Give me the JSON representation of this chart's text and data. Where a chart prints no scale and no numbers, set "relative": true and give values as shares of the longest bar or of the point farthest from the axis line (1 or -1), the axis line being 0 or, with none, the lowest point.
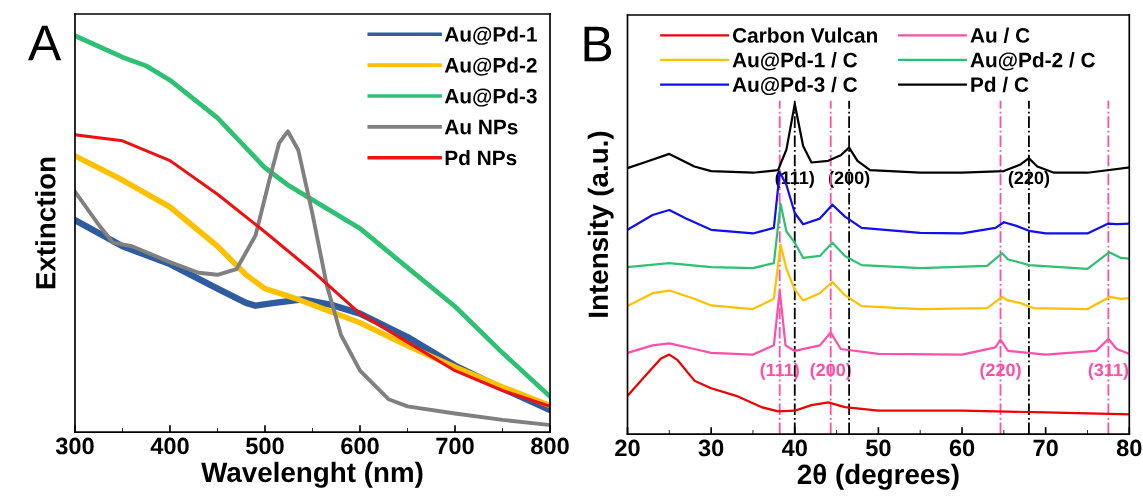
{
  "chart_data": [
    {
      "type": "line",
      "title": "A",
      "xlabel": "Wavelenght (nm)",
      "ylabel": "Extinction",
      "relative": true,
      "xlim": [
        300,
        800
      ],
      "xticks": [
        300,
        400,
        500,
        600,
        700,
        800
      ],
      "tick_labels": "x",
      "legend": "top right",
      "series": [
        {
          "name": "Au@Pd-1",
          "color": "#2e5c9e",
          "x": [
            300,
            350,
            400,
            450,
            480,
            490,
            510,
            540,
            570,
            600,
            650,
            700,
            750,
            800
          ],
          "values": [
            0.535,
            0.469,
            0.424,
            0.362,
            0.326,
            0.319,
            0.326,
            0.335,
            0.321,
            0.299,
            0.24,
            0.168,
            0.11,
            0.056
          ]
        },
        {
          "name": "Au@Pd-2",
          "color": "#ffc000",
          "x": [
            300,
            350,
            400,
            450,
            480,
            500,
            530,
            560,
            600,
            650,
            700,
            750,
            800
          ],
          "values": [
            0.697,
            0.636,
            0.568,
            0.469,
            0.397,
            0.362,
            0.339,
            0.312,
            0.276,
            0.218,
            0.164,
            0.114,
            0.067
          ]
        },
        {
          "name": "Au@Pd-3",
          "color": "#2ec073",
          "x": [
            300,
            350,
            375,
            400,
            450,
            500,
            525,
            550,
            600,
            650,
            700,
            750,
            800
          ],
          "values": [
            1.0,
            0.946,
            0.924,
            0.888,
            0.793,
            0.667,
            0.622,
            0.586,
            0.514,
            0.415,
            0.317,
            0.2,
            0.09
          ]
        },
        {
          "name": "Au NPs",
          "color": "#808080",
          "x": [
            300,
            325,
            340,
            360,
            400,
            430,
            450,
            470,
            490,
            505,
            515,
            524,
            535,
            550,
            565,
            580,
            600,
            630,
            650,
            700,
            750,
            800
          ],
          "values": [
            0.607,
            0.523,
            0.478,
            0.469,
            0.429,
            0.402,
            0.397,
            0.411,
            0.496,
            0.64,
            0.73,
            0.759,
            0.712,
            0.55,
            0.371,
            0.245,
            0.155,
            0.083,
            0.065,
            0.047,
            0.031,
            0.018
          ]
        },
        {
          "name": "Pd NPs",
          "color": "#ee1111",
          "x": [
            300,
            350,
            400,
            450,
            500,
            550,
            600,
            650,
            700,
            750,
            800
          ],
          "values": [
            0.75,
            0.735,
            0.685,
            0.6,
            0.505,
            0.406,
            0.299,
            0.227,
            0.155,
            0.105,
            0.065
          ]
        }
      ]
    },
    {
      "type": "line",
      "title": "B",
      "xlabel": "2θ (degrees)",
      "ylabel": "Intensity (a.u.)",
      "relative": true,
      "xlim": [
        20,
        80
      ],
      "xticks": [
        20,
        30,
        40,
        50,
        60,
        70,
        80
      ],
      "tick_labels": "x",
      "legend": "top",
      "series": [
        {
          "name": "Carbon Vulcan",
          "color": "#ee0000",
          "x": [
            20,
            22,
            24,
            25,
            26,
            28,
            30,
            33,
            36,
            38,
            40,
            42,
            44,
            46,
            50,
            60,
            70,
            80
          ],
          "values": [
            0.116,
            0.173,
            0.229,
            0.241,
            0.224,
            0.162,
            0.139,
            0.116,
            0.082,
            0.069,
            0.071,
            0.088,
            0.096,
            0.082,
            0.071,
            0.071,
            0.066,
            0.06
          ]
        },
        {
          "name": "Au / C",
          "color": "#ff4fa7",
          "x": [
            20,
            23,
            25,
            28,
            30,
            35,
            37.5,
            38.2,
            38.9,
            40,
            43,
            44.3,
            45.5,
            50,
            60,
            64,
            64.6,
            65.5,
            70,
            76,
            77.5,
            78.5,
            80
          ],
          "values": [
            0.246,
            0.269,
            0.275,
            0.258,
            0.246,
            0.241,
            0.269,
            0.435,
            0.269,
            0.252,
            0.269,
            0.308,
            0.258,
            0.243,
            0.241,
            0.263,
            0.286,
            0.252,
            0.241,
            0.252,
            0.288,
            0.258,
            0.243
          ]
        },
        {
          "name": "Au@Pd-1 / C",
          "color": "#ffc000",
          "x": [
            20,
            23,
            25,
            28,
            30,
            35,
            37.5,
            38.3,
            39,
            40,
            41,
            43,
            44.5,
            46,
            48,
            55,
            63,
            64.8,
            65.5,
            67,
            68.5,
            75,
            77.7,
            79,
            80
          ],
          "values": [
            0.388,
            0.427,
            0.435,
            0.41,
            0.39,
            0.379,
            0.41,
            0.574,
            0.501,
            0.438,
            0.405,
            0.427,
            0.461,
            0.421,
            0.388,
            0.379,
            0.382,
            0.416,
            0.405,
            0.397,
            0.382,
            0.379,
            0.416,
            0.41,
            0.412
          ]
        },
        {
          "name": "Au@Pd-2 / C",
          "color": "#2ec073",
          "x": [
            20,
            25,
            30,
            35,
            37.5,
            38.3,
            39,
            40,
            41,
            43,
            44.5,
            46,
            48,
            55,
            63,
            64.8,
            65.5,
            66.5,
            68,
            75,
            77.6,
            79,
            80
          ],
          "values": [
            0.506,
            0.518,
            0.506,
            0.503,
            0.518,
            0.698,
            0.614,
            0.58,
            0.534,
            0.54,
            0.58,
            0.54,
            0.512,
            0.503,
            0.51,
            0.548,
            0.529,
            0.523,
            0.512,
            0.501,
            0.551,
            0.534,
            0.532
          ]
        },
        {
          "name": "Au@Pd-3 / C",
          "color": "#1010ee",
          "x": [
            20,
            23,
            25,
            27,
            30,
            35,
            37.5,
            38.2,
            39,
            40,
            41,
            43,
            44.5,
            46,
            48,
            55,
            60,
            64,
            65,
            66.5,
            68,
            70,
            75,
            77.5,
            78.5,
            80
          ],
          "values": [
            0.619,
            0.664,
            0.679,
            0.653,
            0.619,
            0.608,
            0.625,
            0.794,
            0.755,
            0.67,
            0.636,
            0.653,
            0.695,
            0.659,
            0.625,
            0.61,
            0.608,
            0.625,
            0.642,
            0.631,
            0.616,
            0.608,
            0.608,
            0.638,
            0.636,
            0.638
          ]
        },
        {
          "name": "Pd / C",
          "color": "#000000",
          "x": [
            20,
            22,
            25,
            28,
            30,
            35,
            38,
            39,
            40,
            41,
            42,
            44,
            45.5,
            46.5,
            47.5,
            49,
            55,
            60,
            65,
            67,
            68,
            69,
            71,
            75,
            80
          ],
          "values": [
            0.806,
            0.823,
            0.849,
            0.811,
            0.797,
            0.792,
            0.8,
            0.862,
            1.0,
            0.873,
            0.823,
            0.828,
            0.845,
            0.868,
            0.828,
            0.8,
            0.792,
            0.792,
            0.797,
            0.817,
            0.836,
            0.811,
            0.792,
            0.792,
            0.808
          ]
        }
      ],
      "ref_lines": [
        {
          "axis": "x",
          "value": 38.2,
          "color": "#ff4fa7"
        },
        {
          "axis": "x",
          "value": 44.3,
          "color": "#ff4fa7"
        },
        {
          "axis": "x",
          "value": 64.6,
          "color": "#ff4fa7"
        },
        {
          "axis": "x",
          "value": 77.5,
          "color": "#ff4fa7"
        },
        {
          "axis": "x",
          "value": 40.0,
          "color": "#000000"
        },
        {
          "axis": "x",
          "value": 46.5,
          "color": "#000000"
        },
        {
          "axis": "x",
          "value": 68.0,
          "color": "#000000"
        }
      ],
      "annotations": [
        {
          "text": "(111)",
          "x": 38.2,
          "y": 0.19
        },
        {
          "text": "(200)",
          "x": 44.3,
          "y": 0.19
        },
        {
          "text": "(220)",
          "x": 64.6,
          "y": 0.19
        },
        {
          "text": "(311)",
          "x": 77.5,
          "y": 0.19
        },
        {
          "text": "(111)",
          "x": 40.0,
          "y": 0.772
        },
        {
          "text": "(200)",
          "x": 46.5,
          "y": 0.772
        },
        {
          "text": "(220)",
          "x": 68.0,
          "y": 0.772
        }
      ]
    }
  ]
}
